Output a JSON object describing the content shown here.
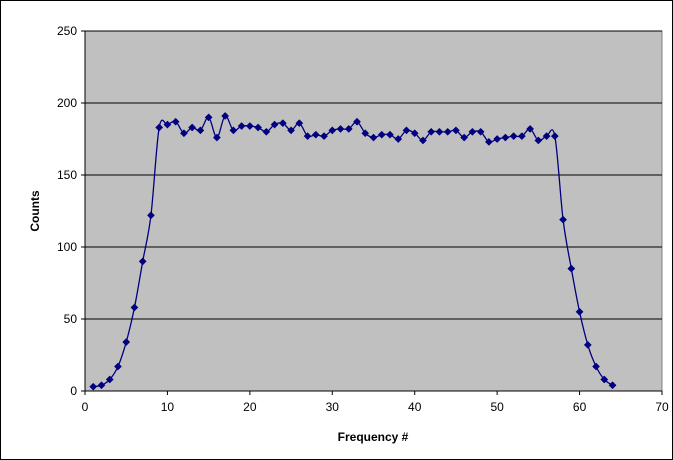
{
  "chart_data": {
    "type": "line",
    "title": "",
    "xlabel": "Frequency #",
    "ylabel": "Counts",
    "xlim": [
      0,
      70
    ],
    "ylim": [
      0,
      250
    ],
    "x_ticks": [
      "0",
      "10",
      "20",
      "30",
      "40",
      "50",
      "60",
      "70"
    ],
    "y_ticks": [
      "0",
      "50",
      "100",
      "150",
      "200",
      "250"
    ],
    "grid": "horizontal",
    "legend": "none",
    "marker": "diamond",
    "smoothed": true,
    "colors": {
      "series": "#000080",
      "plot_area": "#c0c0c0",
      "gridline": "#000000"
    },
    "series": [
      {
        "x": [
          1,
          2,
          3,
          4,
          5,
          6,
          7,
          8,
          9,
          10,
          11,
          12,
          13,
          14,
          15,
          16,
          17,
          18,
          19,
          20,
          21,
          22,
          23,
          24,
          25,
          26,
          27,
          28,
          29,
          30,
          31,
          32,
          33,
          34,
          35,
          36,
          37,
          38,
          39,
          40,
          41,
          42,
          43,
          44,
          45,
          46,
          47,
          48,
          49,
          50,
          51,
          52,
          53,
          54,
          55,
          56,
          57,
          58,
          59,
          60,
          61,
          62,
          63,
          64
        ],
        "values": [
          3,
          4,
          8,
          17,
          34,
          58,
          90,
          122,
          183,
          185,
          187,
          179,
          183,
          181,
          190,
          176,
          191,
          181,
          184,
          184,
          183,
          180,
          185,
          186,
          181,
          186,
          177,
          178,
          177,
          181,
          182,
          182,
          187,
          179,
          176,
          178,
          178,
          175,
          181,
          179,
          174,
          180,
          180,
          180,
          181,
          176,
          180,
          180,
          173,
          175,
          176,
          177,
          177,
          182,
          174,
          177,
          177,
          119,
          85,
          55,
          32,
          17,
          8,
          4
        ]
      }
    ]
  }
}
